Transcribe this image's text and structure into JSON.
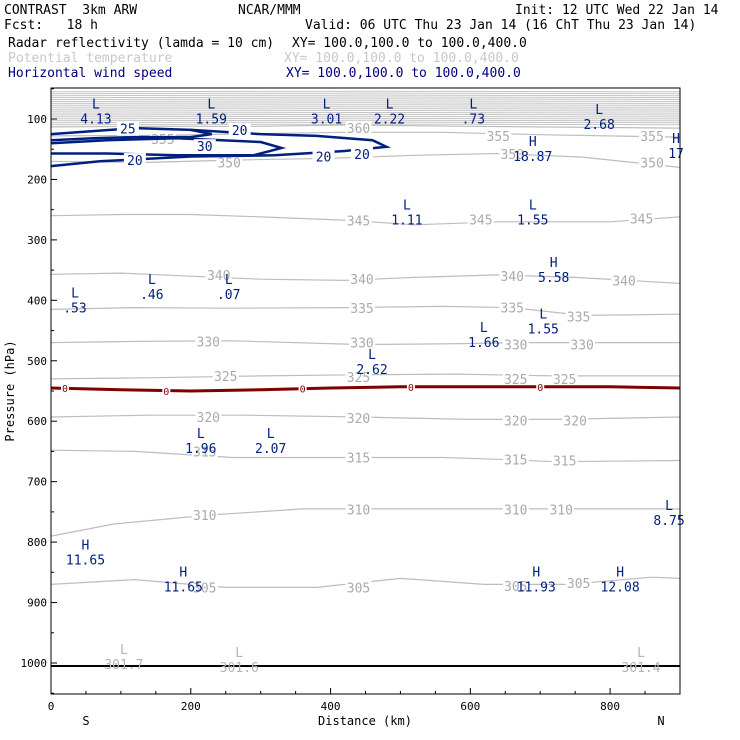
{
  "header": {
    "left_line1": "CONTRAST  3km ARW",
    "left_line2": "Fcst:   18 h",
    "center_line1": "NCAR/MMM",
    "init": "Init: 12 UTC Wed 22 Jan 14",
    "valid": "Valid: 06 UTC Thu 23 Jan 14 (16 ChT Thu 23 Jan 14)"
  },
  "legend": [
    {
      "name": "Radar reflectivity (lamda = 10 cm)",
      "xy": "XY= 100.0,100.0 to 100.0,400.0",
      "color": "#000000"
    },
    {
      "name": "Potential temperature",
      "xy": "XY= 100.0,100.0 to 100.0,400.0",
      "color": "#c8c8c8"
    },
    {
      "name": "Horizontal wind speed",
      "xy": "XY= 100.0,100.0 to 100.0,400.0",
      "color": "#00007f"
    }
  ],
  "chart_data": {
    "type": "contour-cross-section",
    "xlabel": "Distance (km)",
    "ylabel": "Pressure (hPa)",
    "xlim": [
      0,
      900
    ],
    "ylim": [
      1050,
      50
    ],
    "x_ticks": [
      0,
      200,
      400,
      600,
      800
    ],
    "x_tick_labels": [
      "0",
      "200",
      "400",
      "600",
      "800"
    ],
    "y_ticks": [
      100,
      200,
      300,
      400,
      500,
      600,
      700,
      800,
      900,
      1000
    ],
    "y_tick_labels": [
      "100",
      "200",
      "300",
      "400",
      "500",
      "600",
      "700",
      "800",
      "900",
      "1000"
    ],
    "x_endpoints": {
      "left": "S",
      "right": "N"
    },
    "colors": {
      "theta": "#bdbdbd",
      "wind": "#00207f",
      "reflectivity": "#7f0000",
      "ground": "#000000"
    },
    "theta_contours": [
      {
        "level": 345,
        "pts": [
          [
            0,
            260
          ],
          [
            100,
            258
          ],
          [
            200,
            258
          ],
          [
            300,
            262
          ],
          [
            430,
            268
          ],
          [
            520,
            275
          ],
          [
            640,
            270
          ],
          [
            800,
            270
          ],
          [
            900,
            262
          ]
        ]
      },
      {
        "level": 340,
        "pts": [
          [
            0,
            357
          ],
          [
            100,
            355
          ],
          [
            200,
            360
          ],
          [
            300,
            365
          ],
          [
            420,
            367
          ],
          [
            520,
            362
          ],
          [
            640,
            358
          ],
          [
            750,
            362
          ],
          [
            900,
            372
          ]
        ]
      },
      {
        "level": 335,
        "pts": [
          [
            0,
            415
          ],
          [
            120,
            412
          ],
          [
            250,
            413
          ],
          [
            420,
            412
          ],
          [
            560,
            410
          ],
          [
            660,
            412
          ],
          [
            760,
            425
          ],
          [
            900,
            423
          ]
        ]
      },
      {
        "level": 330,
        "pts": [
          [
            0,
            470
          ],
          [
            120,
            468
          ],
          [
            260,
            467
          ],
          [
            440,
            473
          ],
          [
            560,
            472
          ],
          [
            680,
            470
          ],
          [
            800,
            470
          ],
          [
            900,
            470
          ]
        ]
      },
      {
        "level": 325,
        "pts": [
          [
            0,
            530
          ],
          [
            150,
            528
          ],
          [
            300,
            525
          ],
          [
            450,
            523
          ],
          [
            580,
            522
          ],
          [
            720,
            525
          ],
          [
            900,
            525
          ]
        ]
      },
      {
        "level": 320,
        "pts": [
          [
            0,
            593
          ],
          [
            140,
            590
          ],
          [
            280,
            590
          ],
          [
            440,
            593
          ],
          [
            600,
            597
          ],
          [
            720,
            597
          ],
          [
            900,
            593
          ]
        ]
      },
      {
        "level": 315,
        "pts": [
          [
            0,
            648
          ],
          [
            120,
            650
          ],
          [
            260,
            660
          ],
          [
            440,
            660
          ],
          [
            560,
            660
          ],
          [
            640,
            663
          ],
          [
            720,
            667
          ],
          [
            900,
            665
          ]
        ]
      },
      {
        "level": 310,
        "pts": [
          [
            0,
            790
          ],
          [
            90,
            770
          ],
          [
            230,
            755
          ],
          [
            360,
            745
          ],
          [
            480,
            745
          ],
          [
            580,
            745
          ],
          [
            700,
            745
          ],
          [
            900,
            745
          ]
        ]
      },
      {
        "level": 305,
        "pts": [
          [
            0,
            870
          ],
          [
            120,
            862
          ],
          [
            250,
            875
          ],
          [
            380,
            875
          ],
          [
            500,
            860
          ],
          [
            620,
            870
          ],
          [
            740,
            870
          ],
          [
            860,
            858
          ],
          [
            900,
            860
          ]
        ]
      },
      {
        "level": 350,
        "pts": [
          [
            0,
            170
          ],
          [
            130,
            172
          ],
          [
            260,
            168
          ],
          [
            400,
            165
          ],
          [
            520,
            160
          ],
          [
            640,
            157
          ],
          [
            760,
            163
          ],
          [
            900,
            180
          ]
        ]
      },
      {
        "level": 355,
        "pts": [
          [
            0,
            128
          ],
          [
            150,
            127
          ],
          [
            260,
            125
          ],
          [
            420,
            122
          ],
          [
            560,
            122
          ],
          [
            700,
            126
          ],
          [
            900,
            130
          ]
        ]
      },
      {
        "level": 360,
        "pts": [
          [
            0,
            113
          ],
          [
            150,
            112
          ],
          [
            300,
            112
          ],
          [
            420,
            110
          ],
          [
            600,
            112
          ],
          [
            900,
            115
          ]
        ]
      }
    ],
    "theta_labels": [
      {
        "text": "345",
        "x": 440,
        "y": 268
      },
      {
        "text": "345",
        "x": 615,
        "y": 266
      },
      {
        "text": "345",
        "x": 845,
        "y": 265
      },
      {
        "text": "340",
        "x": 445,
        "y": 365
      },
      {
        "text": "340",
        "x": 240,
        "y": 358
      },
      {
        "text": "340",
        "x": 660,
        "y": 360
      },
      {
        "text": "340",
        "x": 820,
        "y": 367
      },
      {
        "text": "335",
        "x": 445,
        "y": 413
      },
      {
        "text": "335",
        "x": 660,
        "y": 412
      },
      {
        "text": "335",
        "x": 755,
        "y": 427
      },
      {
        "text": "330",
        "x": 225,
        "y": 468
      },
      {
        "text": "330",
        "x": 445,
        "y": 470
      },
      {
        "text": "330",
        "x": 665,
        "y": 473
      },
      {
        "text": "330",
        "x": 760,
        "y": 473
      },
      {
        "text": "325",
        "x": 250,
        "y": 525
      },
      {
        "text": "325",
        "x": 440,
        "y": 527
      },
      {
        "text": "325",
        "x": 665,
        "y": 530
      },
      {
        "text": "325",
        "x": 735,
        "y": 530
      },
      {
        "text": "320",
        "x": 225,
        "y": 593
      },
      {
        "text": "320",
        "x": 440,
        "y": 595
      },
      {
        "text": "320",
        "x": 665,
        "y": 599
      },
      {
        "text": "320",
        "x": 750,
        "y": 599
      },
      {
        "text": "315",
        "x": 220,
        "y": 650
      },
      {
        "text": "315",
        "x": 440,
        "y": 660
      },
      {
        "text": "315",
        "x": 665,
        "y": 663
      },
      {
        "text": "315",
        "x": 735,
        "y": 665
      },
      {
        "text": "310",
        "x": 220,
        "y": 755
      },
      {
        "text": "310",
        "x": 440,
        "y": 746
      },
      {
        "text": "310",
        "x": 665,
        "y": 746
      },
      {
        "text": "310",
        "x": 730,
        "y": 746
      },
      {
        "text": "305",
        "x": 220,
        "y": 875
      },
      {
        "text": "305",
        "x": 440,
        "y": 875
      },
      {
        "text": "305",
        "x": 665,
        "y": 873
      },
      {
        "text": "305",
        "x": 755,
        "y": 868
      },
      {
        "text": "350",
        "x": 255,
        "y": 172
      },
      {
        "text": "350",
        "x": 660,
        "y": 158
      },
      {
        "text": "350",
        "x": 860,
        "y": 172
      },
      {
        "text": "355",
        "x": 160,
        "y": 133
      },
      {
        "text": "355",
        "x": 640,
        "y": 128
      },
      {
        "text": "355",
        "x": 860,
        "y": 128
      },
      {
        "text": "360",
        "x": 440,
        "y": 115
      }
    ],
    "wind_contours": [
      {
        "level": 25,
        "pts": [
          [
            0,
            125
          ],
          [
            60,
            120
          ],
          [
            120,
            115
          ],
          [
            200,
            118
          ],
          [
            230,
            125
          ],
          [
            200,
            130
          ],
          [
            120,
            130
          ],
          [
            60,
            132
          ],
          [
            0,
            135
          ]
        ],
        "closed": false
      },
      {
        "level": 30,
        "pts": [
          [
            0,
            140
          ],
          [
            80,
            135
          ],
          [
            180,
            132
          ],
          [
            300,
            138
          ],
          [
            330,
            148
          ],
          [
            290,
            160
          ],
          [
            180,
            160
          ],
          [
            80,
            157
          ],
          [
            0,
            157
          ]
        ],
        "closed": false
      },
      {
        "level": 20,
        "pts": [
          [
            0,
            178
          ],
          [
            70,
            170
          ],
          [
            200,
            162
          ],
          [
            320,
            160
          ],
          [
            420,
            153
          ],
          [
            480,
            146
          ],
          [
            460,
            135
          ],
          [
            380,
            128
          ],
          [
            300,
            125
          ],
          [
            200,
            118
          ]
        ],
        "closed": false
      }
    ],
    "wind_labels": [
      {
        "text": "25",
        "x": 110,
        "y": 116
      },
      {
        "text": "20",
        "x": 270,
        "y": 118
      },
      {
        "text": "30",
        "x": 220,
        "y": 145
      },
      {
        "text": "20",
        "x": 120,
        "y": 168
      },
      {
        "text": "20",
        "x": 390,
        "y": 162
      },
      {
        "text": "20",
        "x": 445,
        "y": 158
      }
    ],
    "reflectivity_line": {
      "pts": [
        [
          0,
          545
        ],
        [
          100,
          548
        ],
        [
          200,
          550
        ],
        [
          300,
          548
        ],
        [
          400,
          545
        ],
        [
          500,
          543
        ],
        [
          600,
          543
        ],
        [
          700,
          543
        ],
        [
          800,
          543
        ],
        [
          900,
          545
        ]
      ]
    },
    "reflectivity_markers": [
      {
        "text": "0",
        "x": 20,
        "y": 545
      },
      {
        "text": "0",
        "x": 165,
        "y": 550
      },
      {
        "text": "0",
        "x": 360,
        "y": 546
      },
      {
        "text": "0",
        "x": 515,
        "y": 543
      },
      {
        "text": "0",
        "x": 700,
        "y": 543
      }
    ],
    "ground_pressure": 1005,
    "extrema": [
      {
        "kind": "L",
        "value": "4.13",
        "x": 50,
        "y": 83,
        "color": "wind"
      },
      {
        "kind": "L",
        "value": "1.59",
        "x": 215,
        "y": 83,
        "color": "wind"
      },
      {
        "kind": "L",
        "value": "3.01",
        "x": 380,
        "y": 83,
        "color": "wind"
      },
      {
        "kind": "L",
        "value": "2.22",
        "x": 470,
        "y": 83,
        "color": "wind"
      },
      {
        "kind": "L",
        "value": ".73",
        "x": 590,
        "y": 83,
        "color": "wind"
      },
      {
        "kind": "L",
        "value": "2.68",
        "x": 770,
        "y": 92,
        "color": "wind"
      },
      {
        "kind": "H",
        "value": "18.87",
        "x": 675,
        "y": 145,
        "color": "wind"
      },
      {
        "kind": "H",
        "value": "17",
        "x": 880,
        "y": 140,
        "color": "wind"
      },
      {
        "kind": "L",
        "value": "1.11",
        "x": 495,
        "y": 250,
        "color": "wind"
      },
      {
        "kind": "L",
        "value": "1.55",
        "x": 675,
        "y": 250,
        "color": "wind"
      },
      {
        "kind": "H",
        "value": "5.58",
        "x": 705,
        "y": 345,
        "color": "wind"
      },
      {
        "kind": "L",
        "value": ".46",
        "x": 130,
        "y": 373,
        "color": "wind"
      },
      {
        "kind": "L",
        "value": ".07",
        "x": 240,
        "y": 373,
        "color": "wind"
      },
      {
        "kind": "L",
        "value": ".53",
        "x": 20,
        "y": 395,
        "color": "wind"
      },
      {
        "kind": "L",
        "value": "1.55",
        "x": 690,
        "y": 430,
        "color": "wind"
      },
      {
        "kind": "L",
        "value": "1.66",
        "x": 605,
        "y": 452,
        "color": "wind"
      },
      {
        "kind": "L",
        "value": "2.62",
        "x": 445,
        "y": 497,
        "color": "wind"
      },
      {
        "kind": "L",
        "value": "1.96",
        "x": 200,
        "y": 628,
        "color": "wind"
      },
      {
        "kind": "L",
        "value": "2.07",
        "x": 300,
        "y": 628,
        "color": "wind"
      },
      {
        "kind": "L",
        "value": "8.75",
        "x": 870,
        "y": 747,
        "color": "wind"
      },
      {
        "kind": "H",
        "value": "11.65",
        "x": 35,
        "y": 812,
        "color": "wind"
      },
      {
        "kind": "H",
        "value": "11.65",
        "x": 175,
        "y": 857,
        "color": "wind"
      },
      {
        "kind": "H",
        "value": "11.93",
        "x": 680,
        "y": 857,
        "color": "wind"
      },
      {
        "kind": "H",
        "value": "12.08",
        "x": 800,
        "y": 857,
        "color": "wind"
      },
      {
        "kind": "L",
        "value": "301.7",
        "x": 90,
        "y": 985,
        "color": "theta"
      },
      {
        "kind": "L",
        "value": "301.6",
        "x": 255,
        "y": 990,
        "color": "theta"
      },
      {
        "kind": "L",
        "value": "301.4",
        "x": 830,
        "y": 990,
        "color": "theta"
      }
    ]
  }
}
